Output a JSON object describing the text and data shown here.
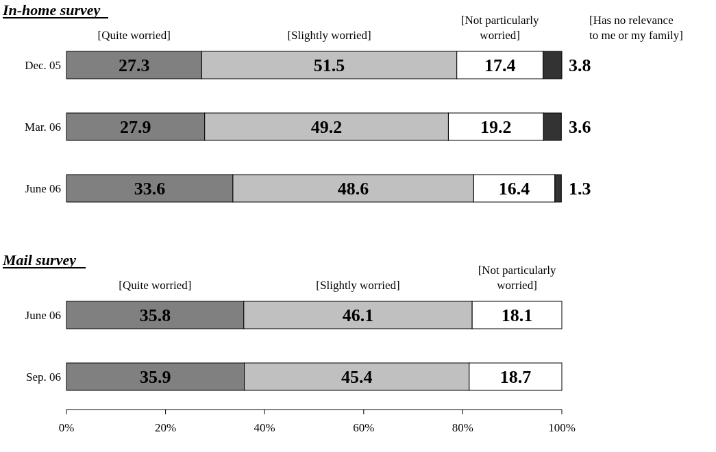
{
  "chart_data": [
    {
      "type": "bar",
      "orientation": "horizontal",
      "stacked": true,
      "title": "In-home survey",
      "categories": [
        "Dec. 05",
        "Mar. 06",
        "June 06"
      ],
      "series": [
        {
          "name": "[Quite worried]",
          "color": "#808080",
          "values": [
            27.3,
            27.9,
            33.6
          ]
        },
        {
          "name": "[Slightly worried]",
          "color": "#c0c0c0",
          "values": [
            51.5,
            49.2,
            48.6
          ]
        },
        {
          "name": "[Not particularly worried]",
          "color": "#ffffff",
          "values": [
            17.4,
            19.2,
            16.4
          ]
        },
        {
          "name": "[Has no relevance to me or my family]",
          "color": "#333333",
          "values": [
            3.8,
            3.6,
            1.3
          ]
        }
      ],
      "xlim": [
        0,
        100
      ],
      "data_labels": true,
      "tick_labels": "y"
    },
    {
      "type": "bar",
      "orientation": "horizontal",
      "stacked": true,
      "title": "Mail survey",
      "categories": [
        "June 06",
        "Sep. 06"
      ],
      "series": [
        {
          "name": "[Quite worried]",
          "color": "#808080",
          "values": [
            35.8,
            35.9
          ]
        },
        {
          "name": "[Slightly worried]",
          "color": "#c0c0c0",
          "values": [
            46.1,
            45.4
          ]
        },
        {
          "name": "[Not particularly worried]",
          "color": "#ffffff",
          "values": [
            18.1,
            18.7
          ]
        }
      ],
      "xlim": [
        0,
        100
      ],
      "xticks": [
        {
          "value": 0,
          "label": "0%"
        },
        {
          "value": 20,
          "label": "20%"
        },
        {
          "value": 40,
          "label": "40%"
        },
        {
          "value": 60,
          "label": "60%"
        },
        {
          "value": 80,
          "label": "80%"
        },
        {
          "value": 100,
          "label": "100%"
        }
      ],
      "data_labels": true
    }
  ]
}
